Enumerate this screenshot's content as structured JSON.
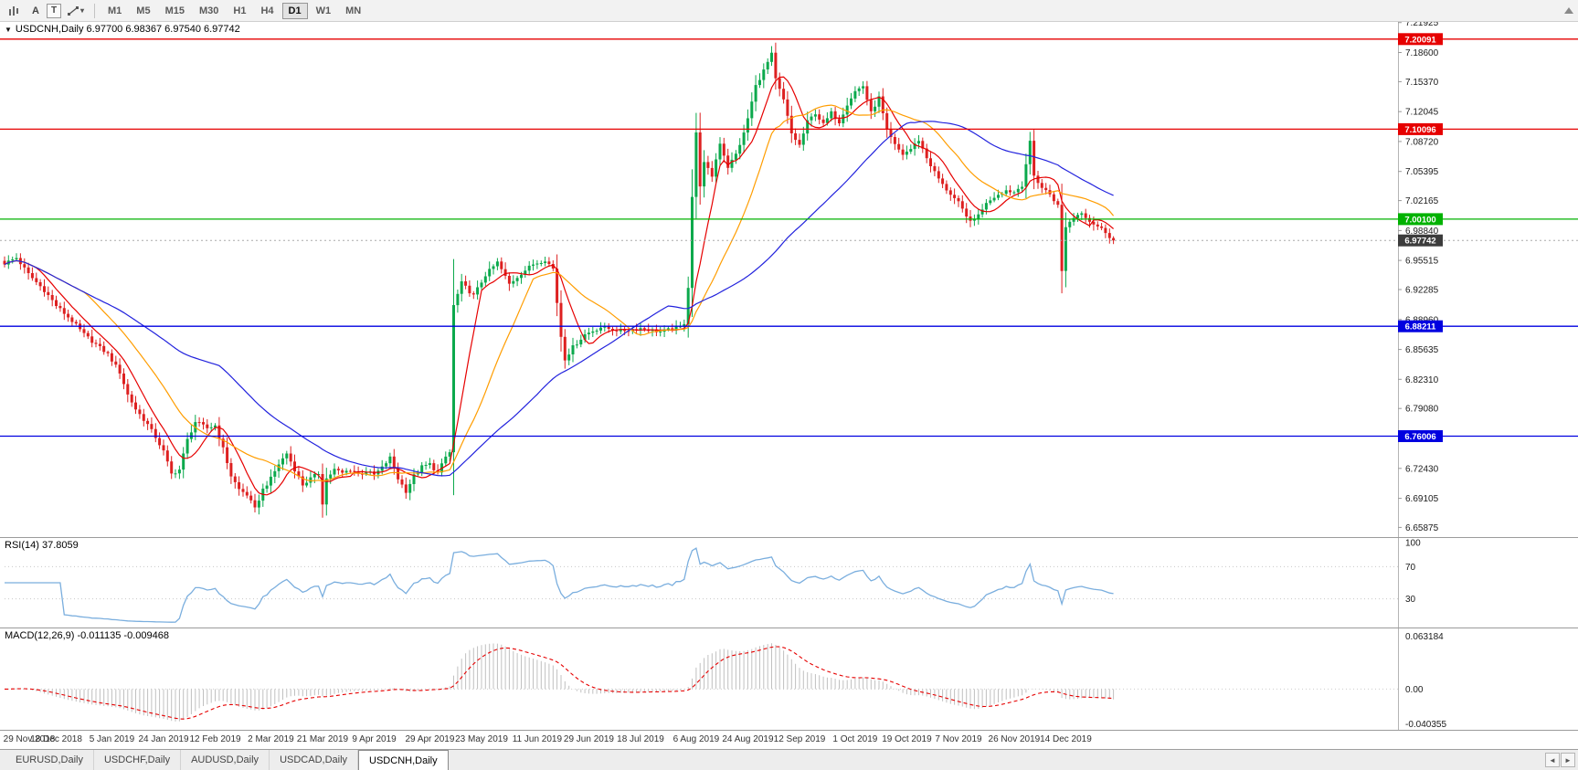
{
  "toolbar": {
    "icons": {
      "a_tool": "A",
      "t_tool": "T",
      "caret": "▾"
    },
    "timeframes": [
      "M1",
      "M5",
      "M15",
      "M30",
      "H1",
      "H4",
      "D1",
      "W1",
      "MN"
    ],
    "active_timeframe": "D1"
  },
  "header": {
    "collapse_glyph": "▼",
    "text": "USDCNH,Daily 6.97700 6.98367 6.97540 6.97742"
  },
  "rsi_panel": {
    "label": "RSI(14) 37.8059"
  },
  "macd_panel": {
    "label": "MACD(12,26,9) -0.011135 -0.009468"
  },
  "tabs": {
    "items": [
      {
        "label": "EURUSD,Daily"
      },
      {
        "label": "USDCHF,Daily"
      },
      {
        "label": "AUDUSD,Daily"
      },
      {
        "label": "USDCAD,Daily"
      },
      {
        "label": "USDCNH,Daily"
      }
    ],
    "active": "USDCNH,Daily",
    "scroll_left_glyph": "◄",
    "scroll_right_glyph": "►"
  },
  "chart_data": {
    "type": "candlestick",
    "symbol": "USDCNH",
    "timeframe": "Daily",
    "last_ohlc": {
      "open": 6.977,
      "high": 6.98367,
      "low": 6.9754,
      "close": 6.97742
    },
    "current_price": 6.97742,
    "price_range": {
      "max": 7.22,
      "min": 6.648
    },
    "price_axis_ticks": [
      "7.21925",
      "7.18600",
      "7.15370",
      "7.12045",
      "7.08720",
      "7.05395",
      "7.02165",
      "6.98840",
      "6.95515",
      "6.92285",
      "6.88960",
      "6.85635",
      "6.82310",
      "6.79080",
      "6.75755",
      "6.72430",
      "6.69105",
      "6.65875"
    ],
    "hlines": [
      {
        "label": "7.20091",
        "price": 7.20091,
        "color": "#e60000"
      },
      {
        "label": "7.10096",
        "price": 7.10096,
        "color": "#e60000"
      },
      {
        "label": "7.00100",
        "price": 7.001,
        "color": "#00b200"
      },
      {
        "label": "6.97742",
        "price": 6.97742,
        "color": "#aaaaaa",
        "tag_color": "#3c3c3c",
        "dashed": true,
        "width": 1
      },
      {
        "label": "6.88211",
        "price": 6.88211,
        "color": "#0000e0"
      },
      {
        "label": "6.76006",
        "price": 6.76006,
        "color": "#0000e0"
      }
    ],
    "colors": {
      "up": "#0ba94c",
      "down": "#dd2020"
    },
    "num_candles": 280,
    "noise": 0.0042,
    "anchors": [
      [
        0,
        6.952
      ],
      [
        3,
        6.958
      ],
      [
        6,
        6.94
      ],
      [
        10,
        6.922
      ],
      [
        13,
        6.905
      ],
      [
        17,
        6.888
      ],
      [
        20,
        6.873
      ],
      [
        23,
        6.862
      ],
      [
        26,
        6.851
      ],
      [
        29,
        6.831
      ],
      [
        31,
        6.806
      ],
      [
        33,
        6.79
      ],
      [
        36,
        6.773
      ],
      [
        38,
        6.759
      ],
      [
        40,
        6.743
      ],
      [
        42,
        6.718
      ],
      [
        44,
        6.723
      ],
      [
        46,
        6.756
      ],
      [
        48,
        6.776
      ],
      [
        51,
        6.769
      ],
      [
        53,
        6.772
      ],
      [
        55,
        6.746
      ],
      [
        57,
        6.716
      ],
      [
        59,
        6.701
      ],
      [
        61,
        6.695
      ],
      [
        63,
        6.679
      ],
      [
        65,
        6.701
      ],
      [
        67,
        6.713
      ],
      [
        69,
        6.729
      ],
      [
        71,
        6.741
      ],
      [
        73,
        6.723
      ],
      [
        75,
        6.706
      ],
      [
        77,
        6.713
      ],
      [
        79,
        6.719
      ],
      [
        80,
        6.686
      ],
      [
        81,
        6.713
      ],
      [
        83,
        6.723
      ],
      [
        85,
        6.719
      ],
      [
        87,
        6.723
      ],
      [
        89,
        6.718
      ],
      [
        91,
        6.721
      ],
      [
        93,
        6.717
      ],
      [
        95,
        6.725
      ],
      [
        97,
        6.736
      ],
      [
        99,
        6.713
      ],
      [
        101,
        6.699
      ],
      [
        103,
        6.716
      ],
      [
        105,
        6.726
      ],
      [
        107,
        6.729
      ],
      [
        109,
        6.719
      ],
      [
        111,
        6.737
      ],
      [
        112,
        6.742
      ],
      [
        113,
        6.905
      ],
      [
        115,
        6.93
      ],
      [
        118,
        6.916
      ],
      [
        121,
        6.939
      ],
      [
        124,
        6.953
      ],
      [
        127,
        6.929
      ],
      [
        130,
        6.941
      ],
      [
        133,
        6.951
      ],
      [
        136,
        6.956
      ],
      [
        138,
        6.946
      ],
      [
        140,
        6.871
      ],
      [
        141,
        6.846
      ],
      [
        143,
        6.859
      ],
      [
        146,
        6.873
      ],
      [
        150,
        6.881
      ],
      [
        155,
        6.877
      ],
      [
        160,
        6.88
      ],
      [
        165,
        6.876
      ],
      [
        170,
        6.881
      ],
      [
        171,
        6.886
      ],
      [
        172,
        6.926
      ],
      [
        173,
        7.026
      ],
      [
        174,
        7.096
      ],
      [
        175,
        7.039
      ],
      [
        176,
        7.063
      ],
      [
        178,
        7.049
      ],
      [
        180,
        7.086
      ],
      [
        182,
        7.059
      ],
      [
        184,
        7.073
      ],
      [
        186,
        7.096
      ],
      [
        187,
        7.113
      ],
      [
        189,
        7.149
      ],
      [
        191,
        7.166
      ],
      [
        193,
        7.184
      ],
      [
        194,
        7.156
      ],
      [
        196,
        7.133
      ],
      [
        198,
        7.096
      ],
      [
        200,
        7.083
      ],
      [
        202,
        7.109
      ],
      [
        204,
        7.119
      ],
      [
        206,
        7.106
      ],
      [
        208,
        7.119
      ],
      [
        210,
        7.109
      ],
      [
        212,
        7.129
      ],
      [
        214,
        7.143
      ],
      [
        216,
        7.149
      ],
      [
        218,
        7.119
      ],
      [
        220,
        7.136
      ],
      [
        222,
        7.099
      ],
      [
        224,
        7.083
      ],
      [
        226,
        7.073
      ],
      [
        228,
        7.079
      ],
      [
        230,
        7.089
      ],
      [
        232,
        7.069
      ],
      [
        234,
        7.053
      ],
      [
        236,
        7.039
      ],
      [
        238,
        7.029
      ],
      [
        240,
        7.019
      ],
      [
        242,
        7.003
      ],
      [
        244,
        6.999
      ],
      [
        246,
        7.013
      ],
      [
        248,
        7.023
      ],
      [
        250,
        7.029
      ],
      [
        252,
        7.033
      ],
      [
        254,
        7.031
      ],
      [
        256,
        7.039
      ],
      [
        258,
        7.086
      ],
      [
        259,
        7.049
      ],
      [
        261,
        7.036
      ],
      [
        263,
        7.029
      ],
      [
        265,
        7.016
      ],
      [
        266,
        6.943
      ],
      [
        267,
        6.993
      ],
      [
        269,
        7.003
      ],
      [
        271,
        7.009
      ],
      [
        273,
        6.999
      ],
      [
        275,
        6.993
      ],
      [
        277,
        6.987
      ],
      [
        279,
        6.977
      ]
    ],
    "moving_averages": [
      {
        "name": "ma-fast",
        "period": 8,
        "color": "#e60000"
      },
      {
        "name": "ma-mid",
        "period": 21,
        "color": "#ff9d00"
      },
      {
        "name": "ma-slow",
        "period": 55,
        "color": "#2222dd"
      }
    ],
    "rsi": {
      "period": 14,
      "levels": [
        70,
        30
      ],
      "axis_values": [
        100,
        70,
        30
      ],
      "color": "#7aaede",
      "last_value": 37.8059
    },
    "macd": {
      "fast": 12,
      "slow": 26,
      "signal": 9,
      "histogram_color": "#c0c0c0",
      "signal_color": "#e60000",
      "axis_max": 0.063184,
      "axis_min": -0.040355,
      "axis_labels": [
        "0.063184",
        "0.00",
        "-0.040355"
      ],
      "last_main": -0.011135,
      "last_signal": -0.009468
    },
    "date_labels": [
      "29 Nov 2018",
      "18 Dec 2018",
      "5 Jan 2019",
      "24 Jan 2019",
      "12 Feb 2019",
      "2 Mar 2019",
      "21 Mar 2019",
      "9 Apr 2019",
      "29 Apr 2019",
      "23 May 2019",
      "11 Jun 2019",
      "29 Jun 2019",
      "18 Jul 2019",
      "6 Aug 2019",
      "24 Aug 2019",
      "12 Sep 2019",
      "1 Oct 2019",
      "19 Oct 2019",
      "7 Nov 2019",
      "26 Nov 2019",
      "14 Dec 2019"
    ]
  }
}
